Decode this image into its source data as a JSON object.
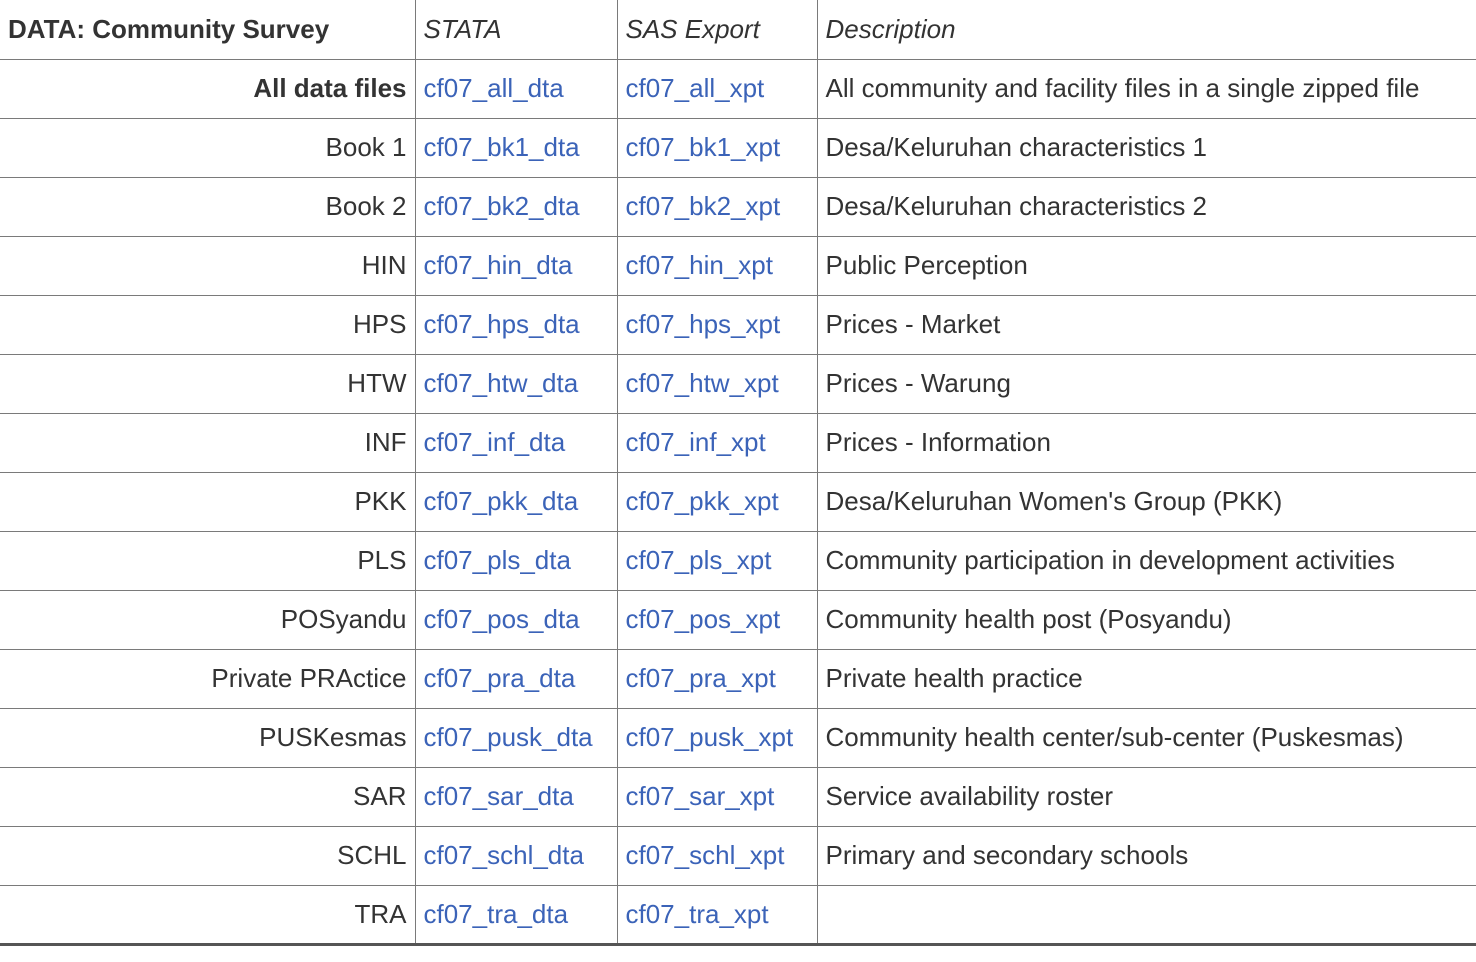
{
  "table": {
    "headers": [
      "DATA: Community Survey",
      "STATA",
      "SAS Export",
      "Description"
    ],
    "rows": [
      {
        "label": "All data files",
        "stata": "cf07_all_dta",
        "sas": "cf07_all_xpt",
        "description": "All community and facility files in a single zipped file"
      },
      {
        "label": "Book 1",
        "stata": "cf07_bk1_dta",
        "sas": "cf07_bk1_xpt",
        "description": "Desa/Keluruhan characteristics 1"
      },
      {
        "label": "Book 2",
        "stata": "cf07_bk2_dta",
        "sas": "cf07_bk2_xpt",
        "description": "Desa/Keluruhan characteristics 2"
      },
      {
        "label": "HIN",
        "stata": "cf07_hin_dta",
        "sas": "cf07_hin_xpt",
        "description": "Public Perception"
      },
      {
        "label": "HPS",
        "stata": "cf07_hps_dta",
        "sas": "cf07_hps_xpt",
        "description": "Prices - Market"
      },
      {
        "label": "HTW",
        "stata": "cf07_htw_dta",
        "sas": "cf07_htw_xpt",
        "description": "Prices - Warung"
      },
      {
        "label": "INF",
        "stata": "cf07_inf_dta",
        "sas": "cf07_inf_xpt",
        "description": "Prices - Information"
      },
      {
        "label": "PKK",
        "stata": "cf07_pkk_dta",
        "sas": "cf07_pkk_xpt",
        "description": "Desa/Keluruhan Women's Group (PKK)"
      },
      {
        "label": "PLS",
        "stata": "cf07_pls_dta",
        "sas": "cf07_pls_xpt",
        "description": "Community participation in development activities"
      },
      {
        "label": "POSyandu",
        "stata": "cf07_pos_dta",
        "sas": "cf07_pos_xpt",
        "description": "Community health post (Posyandu)"
      },
      {
        "label": "Private PRActice",
        "stata": "cf07_pra_dta",
        "sas": "cf07_pra_xpt",
        "description": "Private health practice"
      },
      {
        "label": "PUSKesmas",
        "stata": "cf07_pusk_dta",
        "sas": "cf07_pusk_xpt",
        "description": "Community health center/sub-center (Puskesmas)"
      },
      {
        "label": "SAR",
        "stata": "cf07_sar_dta",
        "sas": "cf07_sar_xpt",
        "description": "Service availability roster"
      },
      {
        "label": "SCHL",
        "stata": "cf07_schl_dta",
        "sas": "cf07_schl_xpt",
        "description": "Primary and secondary schools"
      },
      {
        "label": "TRA",
        "stata": "cf07_tra_dta",
        "sas": "cf07_tra_xpt",
        "description": ""
      }
    ]
  },
  "colors": {
    "link": "#3b63b8",
    "text": "#333333",
    "border": "#7a7a7a"
  }
}
